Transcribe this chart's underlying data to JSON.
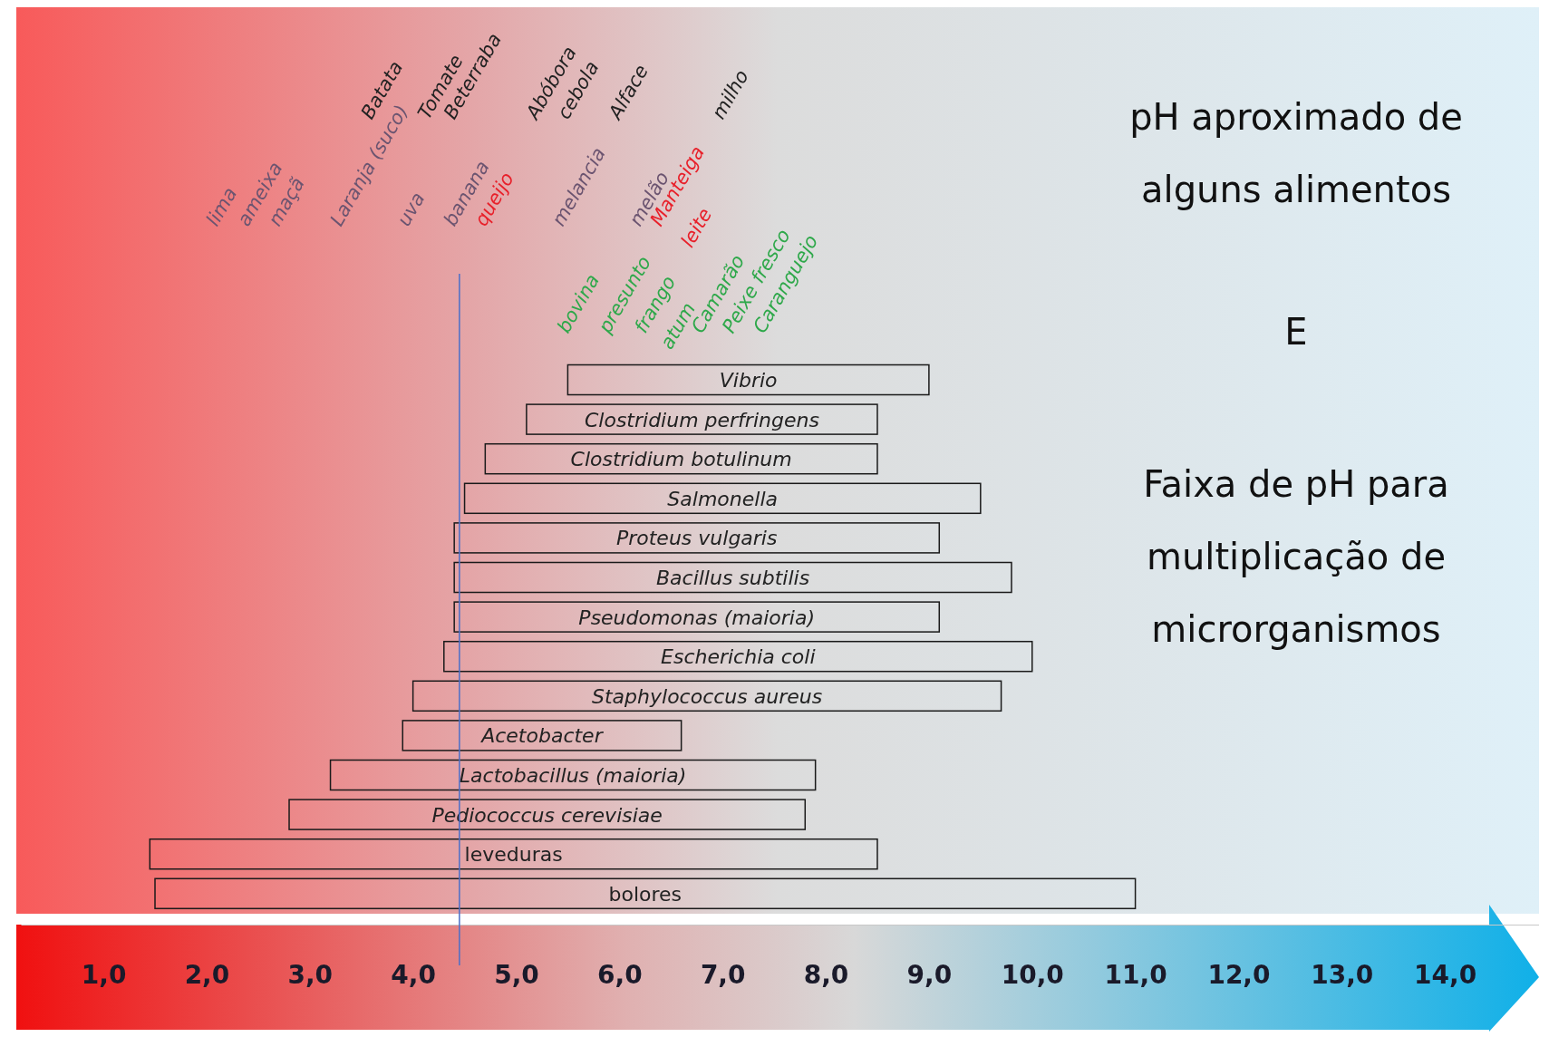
{
  "chart_data": {
    "type": "bar",
    "orientation": "horizontal",
    "title": "pH aproximado de alguns alimentos",
    "subtitle": "Faixa de pH para multiplicação de microrganismos",
    "categories": [
      "Vibrio",
      "Clostridium perfringens",
      "Clostridium botulinum",
      "Salmonella",
      "Proteus vulgaris",
      "Bacillus subtilis",
      "Pseudomonas (maioria)",
      "Escherichia coli",
      "Staphylococcus aureus",
      "Acetobacter",
      "Lactobacillus (maioria)",
      "Pediococcus cerevisiae",
      "leveduras",
      "bolores"
    ],
    "series": [
      {
        "color": "#1a1a1a",
        "base": [
          5.5,
          5.1,
          4.7,
          4.5,
          4.4,
          4.4,
          4.4,
          4.3,
          4.0,
          3.9,
          3.2,
          2.8,
          1.45,
          1.5
        ],
        "values": [
          3.5,
          3.4,
          3.8,
          5.0,
          4.7,
          5.4,
          4.7,
          5.7,
          5.7,
          2.7,
          4.7,
          5.0,
          7.05,
          9.5
        ]
      }
    ],
    "xlim": [
      0.2,
      15
    ],
    "xticks": [
      {
        "value": 1,
        "label": "1,0"
      },
      {
        "value": 2,
        "label": "2,0"
      },
      {
        "value": 3,
        "label": "3,0"
      },
      {
        "value": 4,
        "label": "4,0"
      },
      {
        "value": 5,
        "label": "5,0"
      },
      {
        "value": 6,
        "label": "6,0"
      },
      {
        "value": 7,
        "label": "7,0"
      },
      {
        "value": 8,
        "label": "8,0"
      },
      {
        "value": 9,
        "label": "9,0"
      },
      {
        "value": 10,
        "label": "10,0"
      },
      {
        "value": 11,
        "label": "11,0"
      },
      {
        "value": 12,
        "label": "12,0"
      },
      {
        "value": 13,
        "label": "13,0"
      },
      {
        "value": 14,
        "label": "14,0"
      }
    ],
    "ref_lines": [
      {
        "axis": "x",
        "value": 4.45,
        "label": null,
        "color": "#4a6fc8"
      }
    ],
    "annotations": [
      "E",
      "lima",
      "ameixa",
      "maçã",
      "Laranja (suco)",
      "Batata",
      "uva",
      "Tomate",
      "Beterraba",
      "banana",
      "queijo",
      "Abóbora",
      "cebola",
      "melancia",
      "Alface",
      "melão",
      "Manteiga",
      "leite",
      "milho",
      "bovina",
      "presunto",
      "frango",
      "atum",
      "Camarão",
      "Peixe fresco",
      "Caranguejo"
    ]
  }
}
